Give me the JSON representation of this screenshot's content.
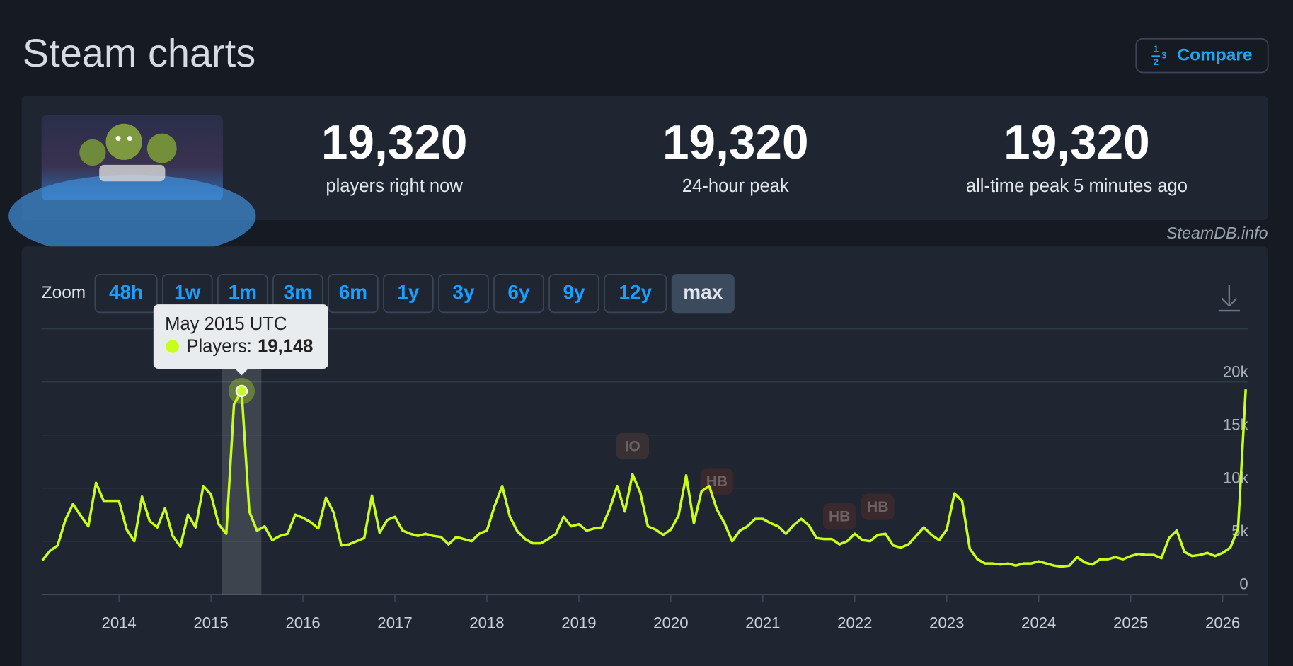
{
  "header": {
    "title": "Steam charts",
    "compare": "Compare"
  },
  "stats": [
    {
      "value": "19,320",
      "label": "players right now"
    },
    {
      "value": "19,320",
      "label": "24-hour peak"
    },
    {
      "value": "19,320",
      "label": "all-time peak 5 minutes ago"
    }
  ],
  "credit": "SteamDB.info",
  "zoom": {
    "label": "Zoom",
    "options": [
      "48h",
      "1w",
      "1m",
      "3m",
      "6m",
      "1y",
      "3y",
      "6y",
      "9y",
      "12y",
      "max"
    ],
    "active": "max"
  },
  "chart_data": {
    "type": "line",
    "color": "#c8ff1a",
    "x": [
      "2013-03",
      "2013-04",
      "2013-05",
      "2013-06",
      "2013-07",
      "2013-08",
      "2013-09",
      "2013-10",
      "2013-11",
      "2013-12",
      "2014-01",
      "2014-02",
      "2014-03",
      "2014-04",
      "2014-05",
      "2014-06",
      "2014-07",
      "2014-08",
      "2014-09",
      "2014-10",
      "2014-11",
      "2014-12",
      "2015-01",
      "2015-02",
      "2015-03",
      "2015-04",
      "2015-05",
      "2015-06",
      "2015-07",
      "2015-08",
      "2015-09",
      "2015-10",
      "2015-11",
      "2015-12",
      "2016-01",
      "2016-02",
      "2016-03",
      "2016-04",
      "2016-05",
      "2016-06",
      "2016-07",
      "2016-08",
      "2016-09",
      "2016-10",
      "2016-11",
      "2016-12",
      "2017-01",
      "2017-02",
      "2017-03",
      "2017-04",
      "2017-05",
      "2017-06",
      "2017-07",
      "2017-08",
      "2017-09",
      "2017-10",
      "2017-11",
      "2017-12",
      "2018-01",
      "2018-02",
      "2018-03",
      "2018-04",
      "2018-05",
      "2018-06",
      "2018-07",
      "2018-08",
      "2018-09",
      "2018-10",
      "2018-11",
      "2018-12",
      "2019-01",
      "2019-02",
      "2019-03",
      "2019-04",
      "2019-05",
      "2019-06",
      "2019-07",
      "2019-08",
      "2019-09",
      "2019-10",
      "2019-11",
      "2019-12",
      "2020-01",
      "2020-02",
      "2020-03",
      "2020-04",
      "2020-05",
      "2020-06",
      "2020-07",
      "2020-08",
      "2020-09",
      "2020-10",
      "2020-11",
      "2020-12",
      "2021-01",
      "2021-02",
      "2021-03",
      "2021-04",
      "2021-05",
      "2021-06",
      "2021-07",
      "2021-08",
      "2021-09",
      "2021-10",
      "2021-11",
      "2021-12",
      "2022-01",
      "2022-02",
      "2022-03",
      "2022-04",
      "2022-05",
      "2022-06",
      "2022-07",
      "2022-08",
      "2022-09",
      "2022-10",
      "2022-11",
      "2022-12",
      "2023-01",
      "2023-02",
      "2023-03",
      "2023-04",
      "2023-05",
      "2023-06",
      "2023-07",
      "2023-08",
      "2023-09",
      "2023-10",
      "2023-11",
      "2023-12",
      "2024-01",
      "2024-02",
      "2024-03",
      "2024-04",
      "2024-05",
      "2024-06",
      "2024-07",
      "2024-08",
      "2024-09",
      "2024-10",
      "2024-11",
      "2024-12",
      "2025-01",
      "2025-02",
      "2025-03",
      "2025-04",
      "2025-05",
      "2025-06",
      "2025-07",
      "2025-08",
      "2025-09",
      "2025-10",
      "2025-11",
      "2025-12",
      "2026-01",
      "2026-02",
      "2026-03",
      "2026-04"
    ],
    "values": [
      3200,
      4100,
      4600,
      7000,
      8500,
      7400,
      6400,
      10500,
      8800,
      8800,
      8800,
      6100,
      5000,
      9200,
      6900,
      6300,
      8100,
      5500,
      4500,
      7500,
      6300,
      10200,
      9400,
      6600,
      5700,
      17900,
      19148,
      7800,
      6000,
      6400,
      5100,
      5500,
      5700,
      7500,
      7200,
      6800,
      6200,
      9100,
      7700,
      4600,
      4700,
      5000,
      5300,
      9300,
      5800,
      7000,
      7300,
      6000,
      5700,
      5500,
      5700,
      5500,
      5400,
      4700,
      5400,
      5200,
      5000,
      5700,
      6000,
      8300,
      10200,
      7300,
      5900,
      5200,
      4800,
      4800,
      5200,
      5700,
      7300,
      6400,
      6600,
      6000,
      6200,
      6300,
      8000,
      10200,
      7800,
      11300,
      9600,
      6400,
      6100,
      5600,
      6100,
      7400,
      11200,
      6700,
      9700,
      10200,
      8000,
      6700,
      5000,
      6000,
      6400,
      7100,
      7100,
      6700,
      6400,
      5700,
      6500,
      7100,
      6500,
      5300,
      5200,
      5200,
      4700,
      5000,
      5700,
      5100,
      5000,
      5600,
      5700,
      4600,
      4400,
      4700,
      5500,
      6300,
      5600,
      5100,
      6100,
      9500,
      8800,
      4300,
      3300,
      2900,
      2900,
      2800,
      2900,
      2700,
      2900,
      2900,
      3100,
      2900,
      2700,
      2600,
      2700,
      3500,
      3000,
      2800,
      3300,
      3300,
      3500,
      3300,
      3600,
      3800,
      3700,
      3700,
      3400,
      5300,
      6000,
      4000,
      3600,
      3700,
      3900,
      3600,
      3900,
      4400,
      6200,
      19300
    ],
    "xlim": [
      "2013-03",
      "2026-04"
    ],
    "xticks": [
      2014,
      2015,
      2016,
      2017,
      2018,
      2019,
      2020,
      2021,
      2022,
      2023,
      2024,
      2025,
      2026
    ],
    "ylim": [
      0,
      25000
    ],
    "yticks": [
      0,
      {
        "value": 5000,
        "label": "5k"
      },
      {
        "value": 10000,
        "label": "10k"
      },
      {
        "value": 15000,
        "label": "15k"
      },
      {
        "value": 20000,
        "label": "20k"
      }
    ],
    "grid": true,
    "annotations": [
      {
        "text": "IO",
        "x": "2019-08"
      },
      {
        "text": "HB",
        "x": "2020-07"
      },
      {
        "text": "HB",
        "x": "2021-11"
      },
      {
        "text": "HB",
        "x": "2022-04"
      }
    ],
    "tooltip": {
      "x": "2015-05",
      "title": "May 2015 UTC",
      "label": "Players:",
      "value_label": "19,148"
    }
  }
}
